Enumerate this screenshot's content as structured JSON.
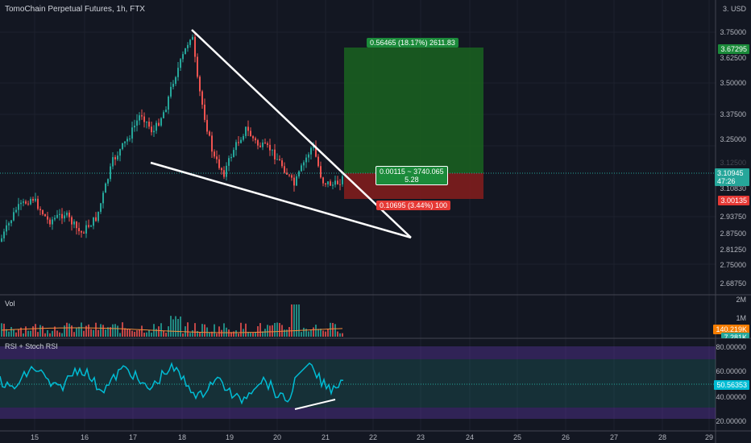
{
  "header": {
    "title": "TomoChain Perpetual Futures, 1h, FTX"
  },
  "price_axis": {
    "currency": "3. USD",
    "ticks": [
      "3.75000",
      "3.62500",
      "3.50000",
      "3.37500",
      "3.25000",
      "3.10830",
      "2.93750",
      "2.87500",
      "2.81250",
      "2.75000",
      "2.68750"
    ],
    "last_price": "3.10945",
    "countdown": "47:26",
    "target_price": "3.67295",
    "stop_price": "3.00135",
    "hidden_tick": "3.12500"
  },
  "position": {
    "target_label": "0.56465 (18.17%) 2611.83",
    "entry_label_1": "0.00115 ~ 3740.065",
    "entry_label_2": "5.28",
    "stop_label": "0.10695 (3.44%) 100"
  },
  "volume_pane": {
    "title": "Vol",
    "ticks": [
      "2M",
      "1M"
    ],
    "vol_value": "140.219K",
    "vol_ma_value": "7.281K"
  },
  "rsi_pane": {
    "title": "RSI + Stoch RSI",
    "ticks": [
      "80.00000",
      "60.00000",
      "40.00000",
      "20.00000"
    ],
    "rsi_value": "50.56353"
  },
  "time_axis": {
    "ticks": [
      "15",
      "16",
      "17",
      "18",
      "19",
      "20",
      "21",
      "22",
      "23",
      "24",
      "25",
      "26",
      "27",
      "28",
      "29"
    ]
  },
  "colors": {
    "background": "#131722",
    "up": "#26a69a",
    "down": "#ef5350",
    "profit": "#1a5e20",
    "loss": "#7f1d1d",
    "rsi_line": "#00bcd4",
    "bands": "#673ab7"
  }
}
